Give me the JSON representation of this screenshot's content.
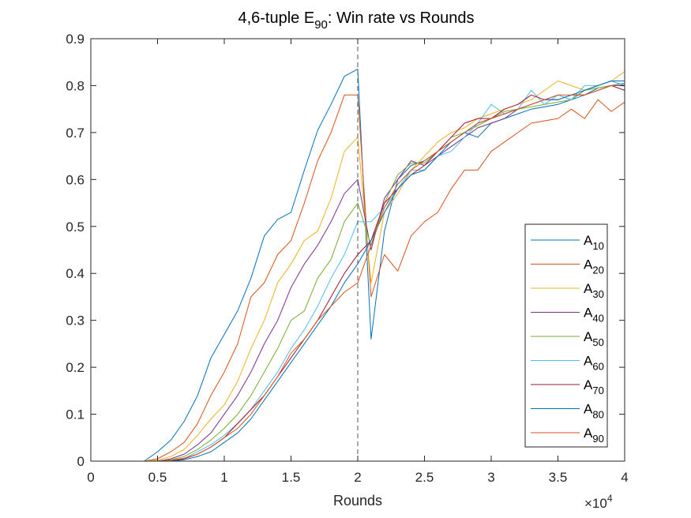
{
  "chart_data": {
    "type": "line",
    "title_main": "4,6-tuple E",
    "title_sub": "90",
    "title_rest": ": Win rate vs Rounds",
    "xlabel": "Rounds",
    "ylabel": "",
    "x_exponent_base": "×10",
    "x_exponent": "4",
    "xlim": [
      0,
      40000
    ],
    "ylim": [
      0,
      0.9
    ],
    "x_ticks": [
      0,
      5000,
      10000,
      15000,
      20000,
      25000,
      30000,
      35000,
      40000
    ],
    "x_tick_labels": [
      "0",
      "0.5",
      "1",
      "1.5",
      "2",
      "2.5",
      "3",
      "3.5",
      "4"
    ],
    "y_ticks": [
      0,
      0.1,
      0.2,
      0.3,
      0.4,
      0.5,
      0.6,
      0.7,
      0.8,
      0.9
    ],
    "y_tick_labels": [
      "0",
      "0.1",
      "0.2",
      "0.3",
      "0.4",
      "0.5",
      "0.6",
      "0.7",
      "0.8",
      "0.9"
    ],
    "grid": false,
    "legend_position": "lower-right",
    "reference_line": {
      "x": 20000,
      "style": "dashed"
    },
    "x": [
      1000,
      2000,
      3000,
      4000,
      5000,
      6000,
      7000,
      8000,
      9000,
      10000,
      11000,
      12000,
      13000,
      14000,
      15000,
      16000,
      17000,
      18000,
      19000,
      20000,
      21000,
      22000,
      23000,
      24000,
      25000,
      26000,
      27000,
      28000,
      29000,
      30000,
      31000,
      32000,
      33000,
      34000,
      35000,
      36000,
      37000,
      38000,
      39000,
      40000
    ],
    "series": [
      {
        "name": "A",
        "subscript": "10",
        "color": "#0072BD",
        "values": [
          0,
          0,
          0,
          0,
          0.02,
          0.045,
          0.085,
          0.14,
          0.22,
          0.27,
          0.32,
          0.39,
          0.48,
          0.515,
          0.53,
          0.62,
          0.705,
          0.76,
          0.82,
          0.835,
          0.26,
          0.49,
          0.6,
          0.63,
          0.64,
          0.66,
          0.68,
          0.7,
          0.69,
          0.72,
          0.73,
          0.74,
          0.75,
          0.755,
          0.76,
          0.77,
          0.78,
          0.795,
          0.8,
          0.805
        ]
      },
      {
        "name": "A",
        "subscript": "20",
        "color": "#D95319",
        "values": [
          0,
          0,
          0,
          0,
          0.005,
          0.02,
          0.04,
          0.08,
          0.14,
          0.19,
          0.25,
          0.35,
          0.38,
          0.44,
          0.47,
          0.55,
          0.64,
          0.7,
          0.78,
          0.78,
          0.35,
          0.44,
          0.405,
          0.48,
          0.51,
          0.53,
          0.58,
          0.62,
          0.62,
          0.66,
          0.68,
          0.7,
          0.72,
          0.725,
          0.73,
          0.75,
          0.73,
          0.77,
          0.745,
          0.765
        ]
      },
      {
        "name": "A",
        "subscript": "30",
        "color": "#EDB120",
        "values": [
          0,
          0,
          0,
          0,
          0.002,
          0.01,
          0.025,
          0.055,
          0.09,
          0.12,
          0.17,
          0.24,
          0.3,
          0.38,
          0.42,
          0.47,
          0.49,
          0.56,
          0.66,
          0.69,
          0.38,
          0.53,
          0.57,
          0.62,
          0.65,
          0.68,
          0.7,
          0.71,
          0.73,
          0.74,
          0.75,
          0.76,
          0.77,
          0.79,
          0.81,
          0.8,
          0.79,
          0.8,
          0.81,
          0.83
        ]
      },
      {
        "name": "A",
        "subscript": "40",
        "color": "#7E2F8E",
        "values": [
          0,
          0,
          0,
          0,
          0,
          0.005,
          0.015,
          0.035,
          0.06,
          0.1,
          0.14,
          0.19,
          0.25,
          0.3,
          0.37,
          0.42,
          0.46,
          0.51,
          0.57,
          0.6,
          0.45,
          0.56,
          0.6,
          0.64,
          0.63,
          0.65,
          0.67,
          0.69,
          0.71,
          0.72,
          0.73,
          0.75,
          0.76,
          0.77,
          0.78,
          0.77,
          0.79,
          0.8,
          0.81,
          0.8
        ]
      },
      {
        "name": "A",
        "subscript": "50",
        "color": "#77AC30",
        "values": [
          0,
          0,
          0,
          0,
          0,
          0.003,
          0.01,
          0.025,
          0.045,
          0.07,
          0.1,
          0.14,
          0.19,
          0.24,
          0.3,
          0.32,
          0.39,
          0.43,
          0.51,
          0.55,
          0.46,
          0.55,
          0.61,
          0.635,
          0.635,
          0.66,
          0.69,
          0.7,
          0.715,
          0.73,
          0.745,
          0.75,
          0.755,
          0.76,
          0.765,
          0.77,
          0.79,
          0.795,
          0.8,
          0.8
        ]
      },
      {
        "name": "A",
        "subscript": "60",
        "color": "#4DBEEE",
        "values": [
          0,
          0,
          0,
          0,
          0,
          0.002,
          0.006,
          0.02,
          0.035,
          0.055,
          0.08,
          0.11,
          0.15,
          0.19,
          0.24,
          0.28,
          0.33,
          0.39,
          0.44,
          0.51,
          0.51,
          0.54,
          0.58,
          0.62,
          0.62,
          0.65,
          0.66,
          0.69,
          0.72,
          0.76,
          0.74,
          0.75,
          0.79,
          0.76,
          0.78,
          0.77,
          0.8,
          0.8,
          0.81,
          0.8
        ]
      },
      {
        "name": "A",
        "subscript": "70",
        "color": "#A2142F",
        "values": [
          0,
          0,
          0,
          0,
          0,
          0,
          0.005,
          0.015,
          0.03,
          0.05,
          0.08,
          0.11,
          0.14,
          0.18,
          0.22,
          0.26,
          0.3,
          0.35,
          0.4,
          0.44,
          0.47,
          0.55,
          0.58,
          0.61,
          0.63,
          0.66,
          0.69,
          0.72,
          0.73,
          0.73,
          0.75,
          0.76,
          0.78,
          0.77,
          0.77,
          0.78,
          0.78,
          0.79,
          0.8,
          0.79
        ]
      },
      {
        "name": "A",
        "subscript": "80",
        "color": "#0072BD",
        "values": [
          0,
          0,
          0,
          0,
          0,
          0,
          0.003,
          0.01,
          0.02,
          0.04,
          0.06,
          0.09,
          0.13,
          0.17,
          0.21,
          0.25,
          0.29,
          0.33,
          0.38,
          0.42,
          0.47,
          0.53,
          0.58,
          0.61,
          0.62,
          0.65,
          0.68,
          0.7,
          0.72,
          0.73,
          0.74,
          0.75,
          0.76,
          0.77,
          0.77,
          0.78,
          0.79,
          0.8,
          0.81,
          0.81
        ]
      },
      {
        "name": "A",
        "subscript": "90",
        "color": "#D95319",
        "values": [
          0,
          0,
          0,
          0,
          0,
          0.002,
          0.006,
          0.015,
          0.03,
          0.05,
          0.07,
          0.1,
          0.14,
          0.18,
          0.23,
          0.26,
          0.3,
          0.33,
          0.36,
          0.38,
          0.46,
          0.54,
          0.59,
          0.62,
          0.64,
          0.66,
          0.68,
          0.7,
          0.72,
          0.73,
          0.74,
          0.75,
          0.76,
          0.77,
          0.78,
          0.78,
          0.78,
          0.79,
          0.8,
          0.8
        ]
      }
    ]
  }
}
